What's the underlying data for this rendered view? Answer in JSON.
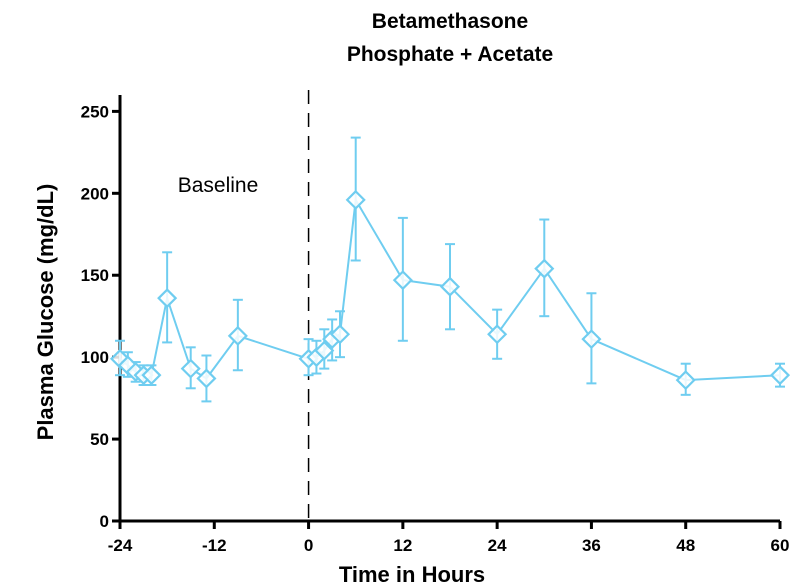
{
  "chart_data": {
    "type": "line",
    "title_lines": [
      "Betamethasone",
      "Phosphate + Acetate"
    ],
    "xlabel": "Time in Hours",
    "ylabel": "Plasma Glucose (mg/dL)",
    "annotation": "Baseline",
    "xlim": [
      -24,
      60
    ],
    "ylim": [
      0,
      260
    ],
    "xticks": [
      -24,
      -12,
      0,
      12,
      24,
      36,
      48,
      60
    ],
    "xtick_labels": [
      "-24",
      "-12",
      "0",
      "12",
      "24",
      "36",
      "48",
      "60"
    ],
    "yticks": [
      0,
      50,
      100,
      150,
      200,
      250
    ],
    "ytick_labels": [
      "0",
      "50",
      "100",
      "150",
      "200",
      "250"
    ],
    "vline_x": 0,
    "color": "#6fcdf0",
    "series": [
      {
        "points": [
          {
            "x": -24,
            "y": 99,
            "lo": 89,
            "hi": 110
          },
          {
            "x": -23,
            "y": 95,
            "lo": 88,
            "hi": 103
          },
          {
            "x": -22,
            "y": 91,
            "lo": 85,
            "hi": 97
          },
          {
            "x": -21,
            "y": 89,
            "lo": 83,
            "hi": 95
          },
          {
            "x": -20,
            "y": 89,
            "lo": 83,
            "hi": 95
          },
          {
            "x": -18,
            "y": 136,
            "lo": 109,
            "hi": 164
          },
          {
            "x": -15,
            "y": 93,
            "lo": 81,
            "hi": 106
          },
          {
            "x": -13,
            "y": 87,
            "lo": 73,
            "hi": 101
          },
          {
            "x": -9,
            "y": 113,
            "lo": 92,
            "hi": 135
          },
          {
            "x": 0,
            "y": 99,
            "lo": 89,
            "hi": 111
          },
          {
            "x": 1,
            "y": 100,
            "lo": 90,
            "hi": 110
          },
          {
            "x": 2,
            "y": 104,
            "lo": 93,
            "hi": 117
          },
          {
            "x": 3,
            "y": 111,
            "lo": 98,
            "hi": 123
          },
          {
            "x": 4,
            "y": 114,
            "lo": 100,
            "hi": 128
          },
          {
            "x": 6,
            "y": 196,
            "lo": 159,
            "hi": 234
          },
          {
            "x": 12,
            "y": 147,
            "lo": 110,
            "hi": 185
          },
          {
            "x": 18,
            "y": 143,
            "lo": 117,
            "hi": 169
          },
          {
            "x": 24,
            "y": 114,
            "lo": 99,
            "hi": 129
          },
          {
            "x": 30,
            "y": 154,
            "lo": 125,
            "hi": 184
          },
          {
            "x": 36,
            "y": 111,
            "lo": 84,
            "hi": 139
          },
          {
            "x": 48,
            "y": 86,
            "lo": 77,
            "hi": 96
          },
          {
            "x": 60,
            "y": 89,
            "lo": 82,
            "hi": 96
          }
        ]
      }
    ]
  }
}
